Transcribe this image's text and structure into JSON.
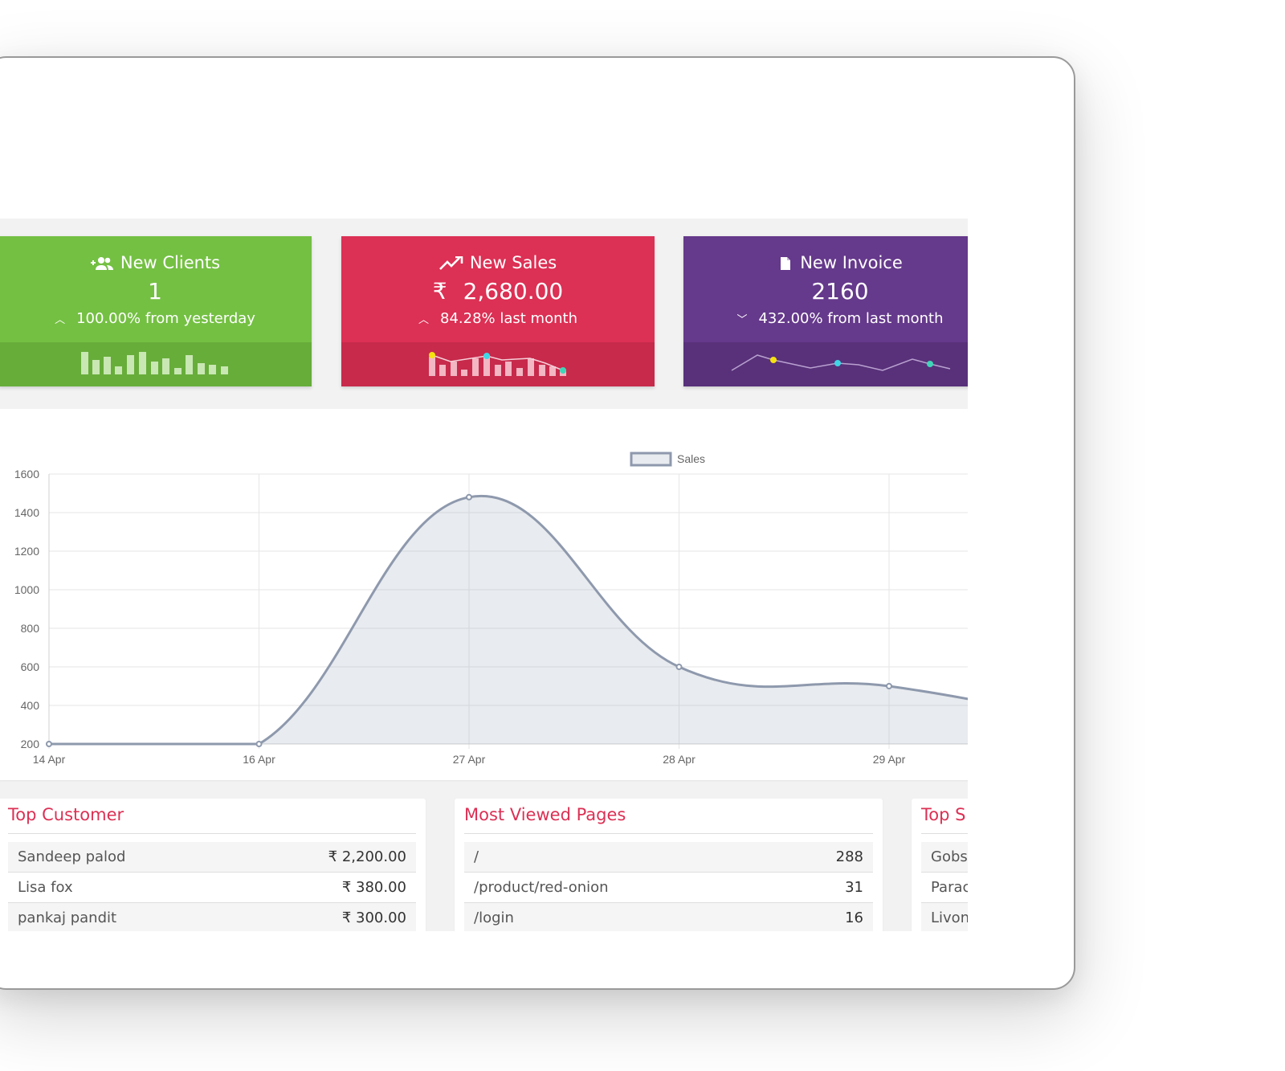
{
  "cards": [
    {
      "title": "New Clients",
      "value": "1",
      "change": "100.00% from yesterday",
      "direction": "up",
      "icon": "user-plus-icon",
      "color": "#74c043"
    },
    {
      "title": "New Sales",
      "currency": "₹",
      "value": "2,680.00",
      "change": "84.28% last month",
      "direction": "up",
      "icon": "trend-up-icon",
      "color": "#dc3054"
    },
    {
      "title": "New Invoice",
      "value": "2160",
      "change": "432.00% from last month",
      "direction": "down",
      "icon": "file-icon",
      "color": "#65398b"
    }
  ],
  "chart_data": {
    "type": "area",
    "legend": [
      "Sales"
    ],
    "legend_position": "top",
    "x": [
      "14 Apr",
      "16 Apr",
      "27 Apr",
      "28 Apr",
      "29 Apr"
    ],
    "series": [
      {
        "name": "Sales",
        "values": [
          200,
          200,
          1480,
          600,
          500
        ]
      }
    ],
    "ylim": [
      200,
      1600
    ],
    "yticks": [
      200,
      400,
      600,
      800,
      1000,
      1200,
      1400,
      1600
    ],
    "grid": true,
    "color": "#8e99ad"
  },
  "top_customer": {
    "title": "Top Customer",
    "rows": [
      {
        "name": "Sandeep palod",
        "amount": "₹ 2,200.00"
      },
      {
        "name": "Lisa fox",
        "amount": "₹ 380.00"
      },
      {
        "name": "pankaj pandit",
        "amount": "₹ 300.00"
      }
    ]
  },
  "most_viewed": {
    "title": "Most Viewed Pages",
    "rows": [
      {
        "page": "/",
        "views": "288"
      },
      {
        "page": "/product/red-onion",
        "views": "31"
      },
      {
        "page": "/login",
        "views": "16"
      }
    ]
  },
  "top_third": {
    "title": "Top S",
    "rows": [
      "Gobs",
      "Parac",
      "Livon"
    ]
  }
}
